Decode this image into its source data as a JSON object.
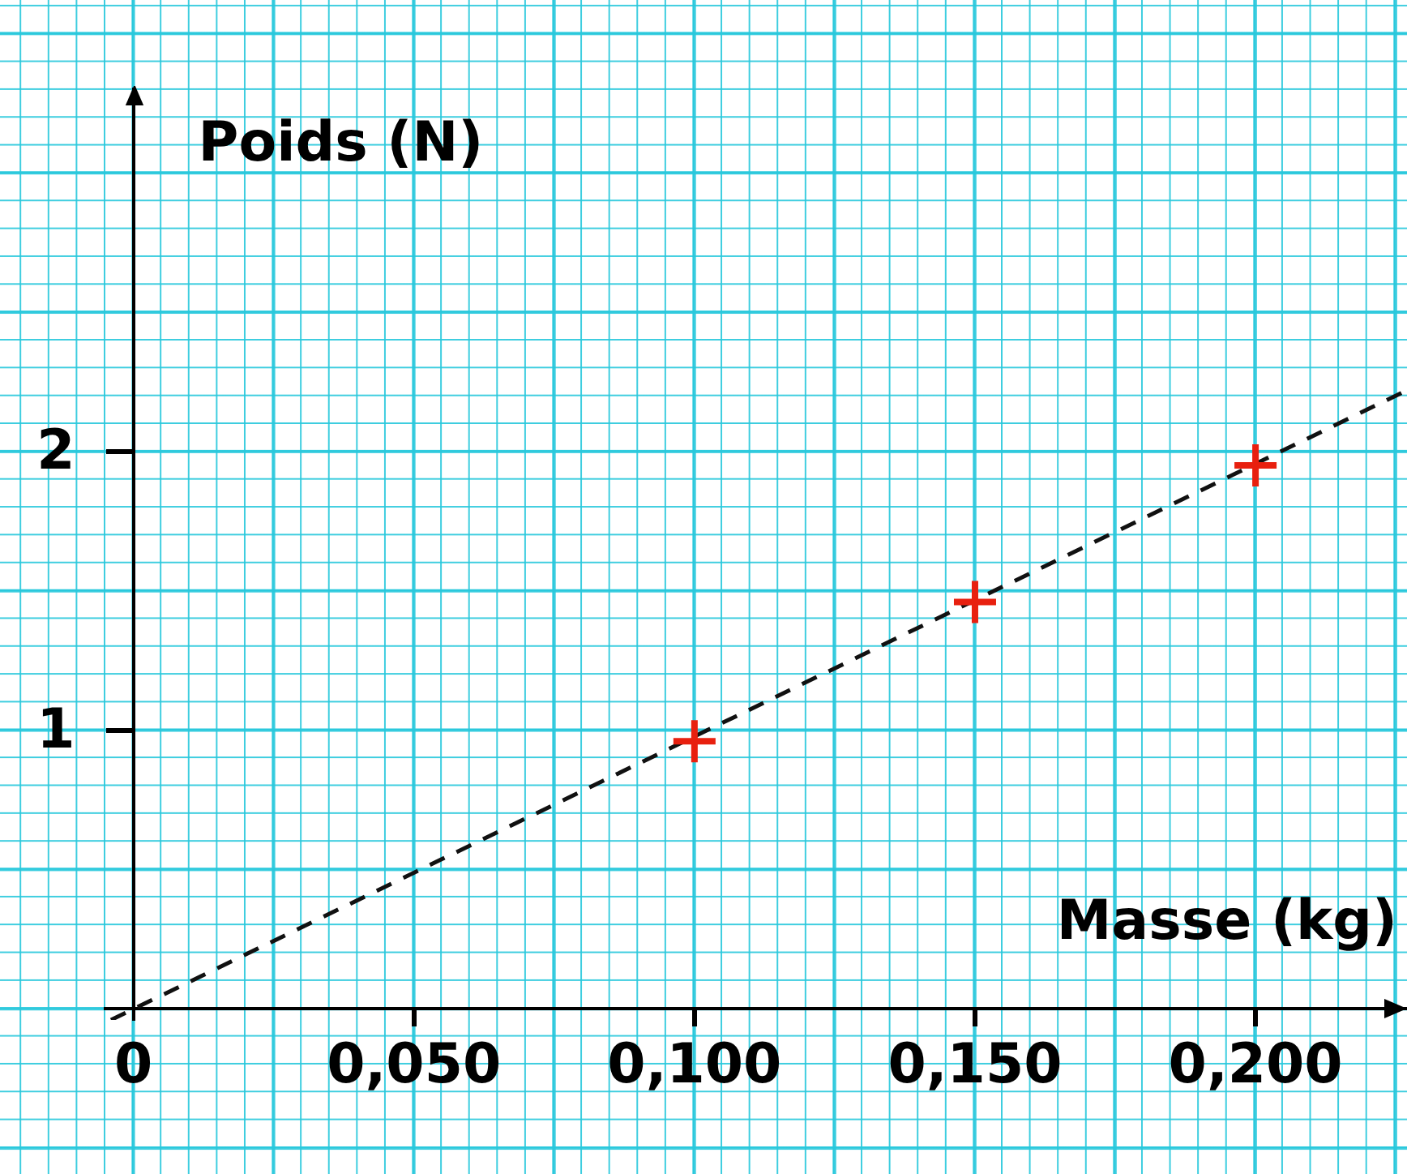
{
  "chart_data": {
    "type": "scatter",
    "xlabel": "Masse (kg)",
    "ylabel": "Poids (N)",
    "xlim": [
      -0.005,
      0.227
    ],
    "ylim": [
      -0.04,
      3.3
    ],
    "xticks": [
      0,
      {
        "value": 0.05,
        "label": "0,050"
      },
      {
        "value": 0.1,
        "label": "0,100"
      },
      {
        "value": 0.15,
        "label": "0,150"
      },
      {
        "value": 0.2,
        "label": "0,200"
      }
    ],
    "yticks": [
      1,
      2
    ],
    "legend": false,
    "series": [
      {
        "color": "#e8200f",
        "marker": "cross",
        "x": [
          0.1,
          0.15,
          0.2
        ],
        "values": [
          0.96,
          1.46,
          1.95
        ]
      },
      {
        "type": "line",
        "color": "#111111",
        "line_style": "dashed",
        "marker": "none",
        "x": [
          -0.004,
          0.226
        ],
        "values": [
          -0.04,
          2.21
        ]
      }
    ]
  }
}
